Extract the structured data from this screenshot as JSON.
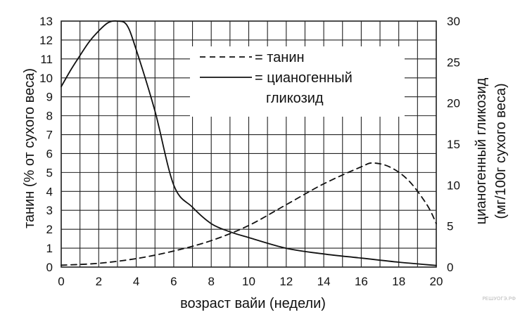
{
  "chart_data": {
    "type": "line",
    "xlabel": "возраст вайи (недели)",
    "ylabel_left": "танин (% от сухого веса)",
    "ylabel_right": "цианогенный гликозид (мг/100г сухого веса)",
    "ylabel_right_lines": [
      "цианогенный гликозид",
      "(мг/100г сухого веса)"
    ],
    "xlim": [
      0,
      20
    ],
    "ylim_left": [
      0,
      13
    ],
    "ylim_right": [
      0,
      30
    ],
    "x_ticks": [
      0,
      2,
      4,
      6,
      8,
      10,
      12,
      14,
      16,
      18,
      20
    ],
    "y_left_ticks": [
      0,
      1,
      2,
      3,
      4,
      5,
      6,
      7,
      8,
      9,
      10,
      11,
      12,
      13
    ],
    "y_right_ticks": [
      0,
      5,
      10,
      15,
      20,
      25,
      30
    ],
    "grid": true,
    "legend_position": "top-center",
    "series": [
      {
        "name": "= танин",
        "style": "dashed",
        "axis": "left",
        "x": [
          0,
          2,
          4,
          6,
          8,
          10,
          12,
          14,
          16,
          16.6,
          17.5,
          18.5,
          19.5,
          20
        ],
        "values": [
          0.1,
          0.2,
          0.45,
          0.85,
          1.4,
          2.2,
          3.3,
          4.4,
          5.3,
          5.5,
          5.3,
          4.6,
          3.3,
          2.3
        ]
      },
      {
        "name": "= цианогенный гликозид",
        "legend_lines": [
          "= цианогенный",
          "гликозид"
        ],
        "style": "solid",
        "axis": "right",
        "x": [
          0,
          0.5,
          1,
          1.5,
          2,
          2.5,
          3,
          3.5,
          4,
          5,
          6,
          7,
          8,
          9,
          10,
          12,
          14,
          16,
          18,
          20
        ],
        "values": [
          22,
          24,
          25.8,
          27.5,
          28.8,
          29.8,
          30,
          29.5,
          26.5,
          19,
          10,
          7.3,
          5.3,
          4.3,
          3.6,
          2.3,
          1.6,
          1.1,
          0.6,
          0.2
        ]
      }
    ]
  },
  "watermark": "РЕШУОГЭ.РФ"
}
